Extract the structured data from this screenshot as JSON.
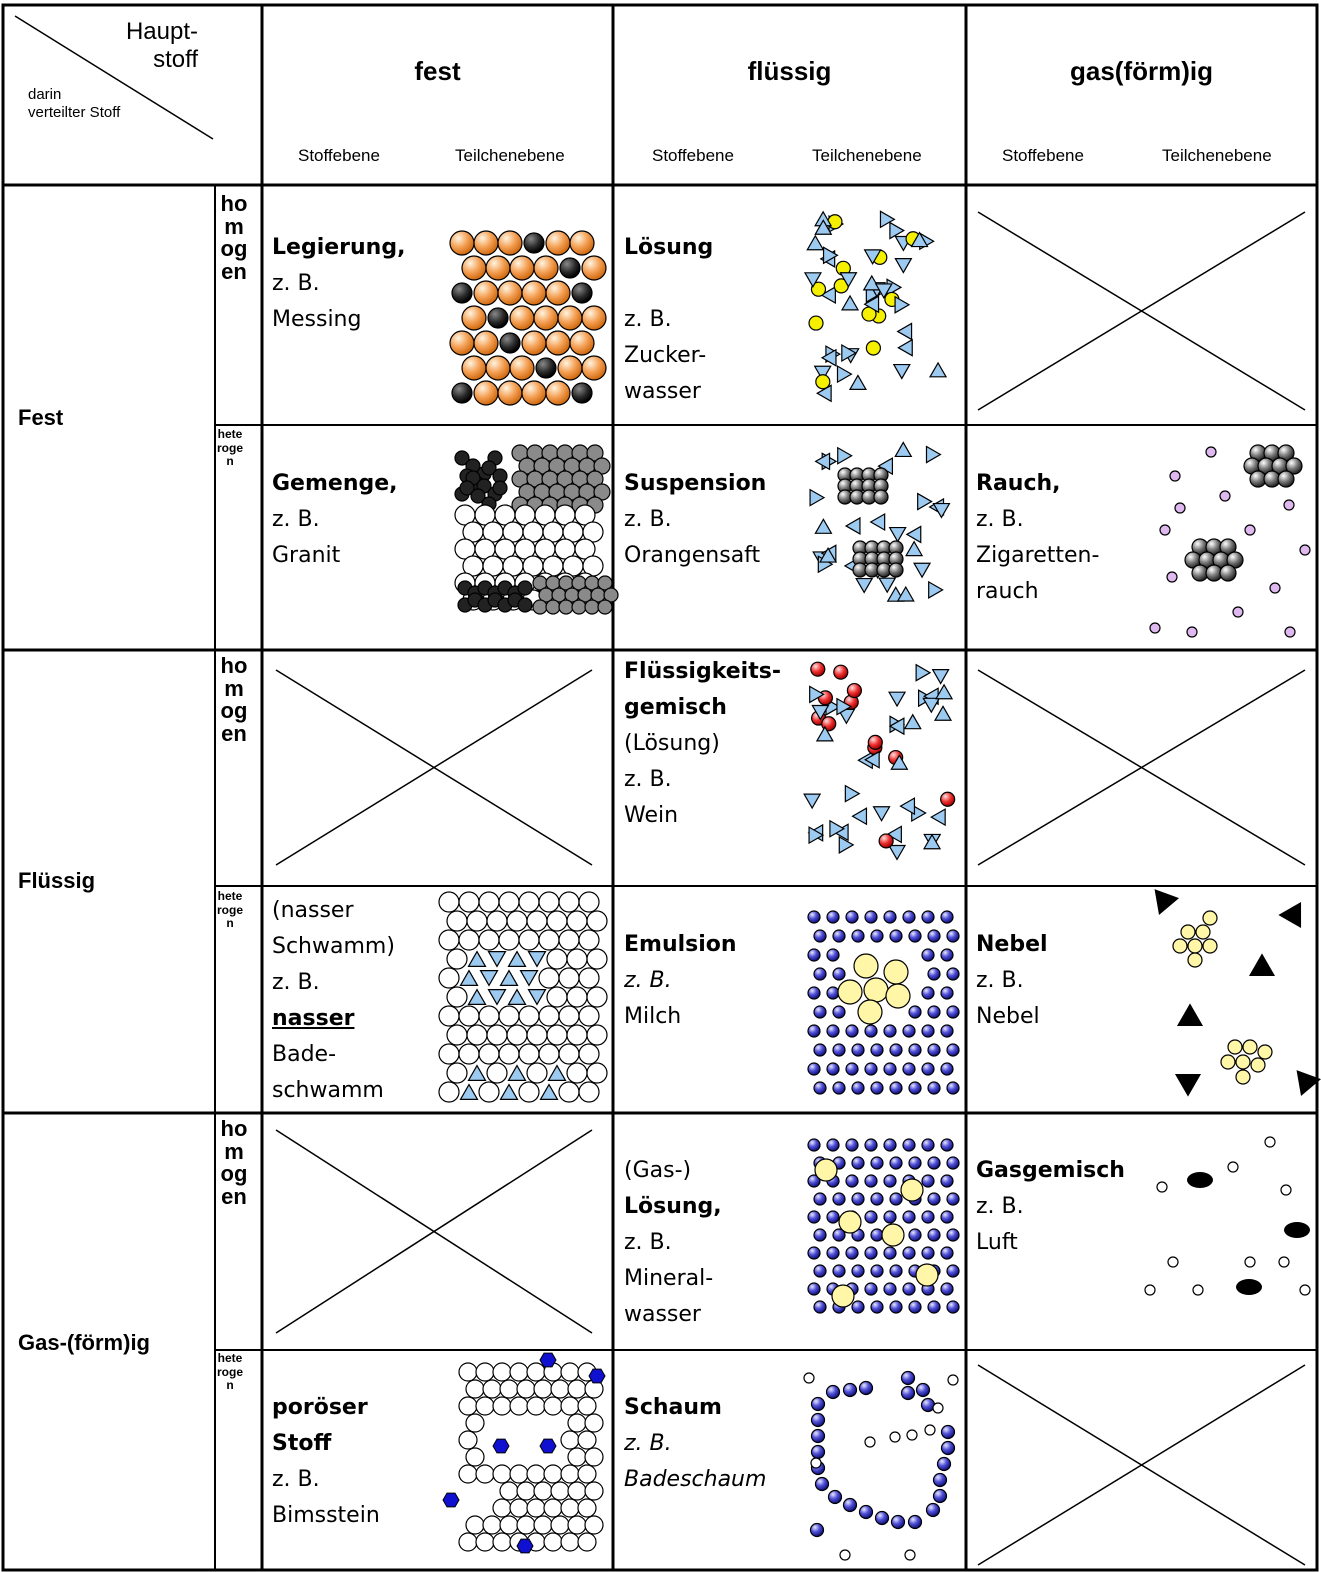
{
  "corner": {
    "top": "Haupt-",
    "top2": "stoff",
    "bottom1": "darin",
    "bottom2": "verteilter Stoff"
  },
  "columns": [
    {
      "title": "fest",
      "level1": "Stoffebene",
      "level2": "Teilchenebene"
    },
    {
      "title": "flüssig",
      "level1": "Stoffebene",
      "level2": "Teilchenebene"
    },
    {
      "title": "gas(förm)ig",
      "level1": "Stoffebene",
      "level2": "Teilchenebene"
    }
  ],
  "rows": [
    {
      "label": "Fest"
    },
    {
      "label": "Flüssig"
    },
    {
      "label": "Gas-(förm)ig"
    }
  ],
  "subrows": {
    "homogen": "homogen",
    "heterogen": "heterogen"
  },
  "cells": {
    "fest_fest_homo": [
      "Legierung,",
      "z. B.",
      "Messing"
    ],
    "fest_fl_homo": [
      "Lösung",
      "",
      "z. B.",
      "Zucker-",
      "wasser"
    ],
    "fest_fest_het": [
      "Gemenge,",
      "z. B.",
      "Granit"
    ],
    "fest_fl_het": [
      "Suspension",
      "z. B.",
      "Orangensaft"
    ],
    "fest_gas_het": [
      "Rauch,",
      "z. B.",
      "Zigaretten-",
      "rauch"
    ],
    "fl_fl_homo": [
      "Flüssigkeits-",
      "gemisch",
      "(Lösung)",
      "z. B.",
      "Wein"
    ],
    "fl_fest_het": [
      "(nasser",
      "Schwamm)",
      "z. B.",
      "nasser",
      "Bade-",
      "schwamm"
    ],
    "fl_fl_het": [
      "Emulsion",
      "z. B.",
      "Milch"
    ],
    "fl_gas_het": [
      "Nebel",
      "z. B.",
      "Nebel"
    ],
    "gas_fl_homo": [
      "(Gas-)",
      "Lösung,",
      "z. B.",
      "Mineral-",
      "wasser"
    ],
    "gas_gas_homo": [
      "Gasgemisch",
      "z. B.",
      "Luft"
    ],
    "gas_fest_het": [
      "poröser",
      "Stoff",
      "z. B.",
      "Bimsstein"
    ],
    "gas_fl_het": [
      "Schaum",
      "z. B.",
      "Badeschaum"
    ]
  },
  "colors": {
    "copper": "#f08a30",
    "dark": "#2a2a2a",
    "grey": "#8a8a8a",
    "triangle": "#9ccaf0",
    "yellow": "#f5f000",
    "red": "#e02020",
    "blue": "#2a2ab0",
    "paleyellow": "#fff6a8",
    "lilac": "#e0b8f0"
  }
}
